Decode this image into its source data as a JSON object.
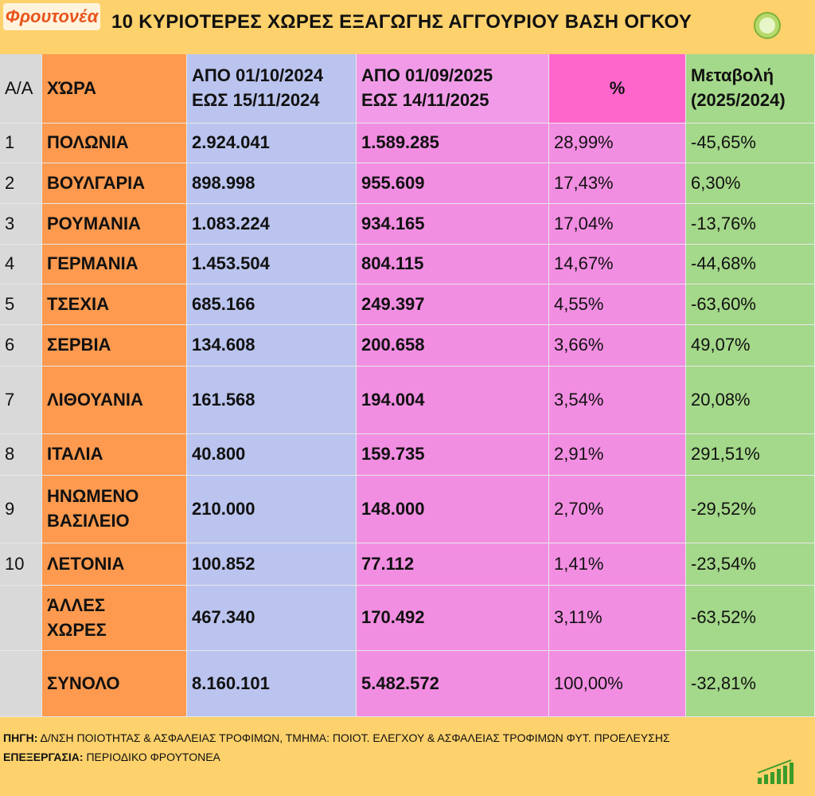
{
  "header": {
    "logo": "Φρουτονέα",
    "title": "10 ΚΥΡΙΟΤΕΡΕΣ ΧΩΡΕΣ ΕΞΑΓΩΓΗΣ ΑΓΓΟΥΡΙΟΥ ΒΑΣΗ ΟΓΚΟΥ"
  },
  "table": {
    "columns": [
      [
        "Α/Α"
      ],
      [
        "ΧΏΡΑ"
      ],
      [
        "ΑΠΟ 01/10/2024",
        "ΕΩΣ  15/11/2024"
      ],
      [
        "ΑΠΟ 01/09/2025",
        "ΕΩΣ  14/11/2025"
      ],
      [
        "%"
      ],
      [
        "Μεταβολή",
        "(2025/2024)"
      ]
    ],
    "rows": [
      {
        "rank": "1",
        "country": [
          "ΠΟΛΩΝΙΑ"
        ],
        "v2024": "2.924.041",
        "v2025": "1.589.285",
        "share": "28,99%",
        "change": "-45,65%"
      },
      {
        "rank": "2",
        "country": [
          "ΒΟΥΛΓΑΡΙΑ"
        ],
        "v2024": "898.998",
        "v2025": "955.609",
        "share": "17,43%",
        "change": "6,30%"
      },
      {
        "rank": "3",
        "country": [
          "ΡΟΥΜΑΝΙΑ"
        ],
        "v2024": "1.083.224",
        "v2025": "934.165",
        "share": "17,04%",
        "change": "-13,76%"
      },
      {
        "rank": "4",
        "country": [
          "ΓΕΡΜΑΝΙΑ"
        ],
        "v2024": "1.453.504",
        "v2025": "804.115",
        "share": "14,67%",
        "change": "-44,68%"
      },
      {
        "rank": "5",
        "country": [
          "ΤΣΕΧΙΑ"
        ],
        "v2024": "685.166",
        "v2025": "249.397",
        "share": "4,55%",
        "change": "-63,60%"
      },
      {
        "rank": "6",
        "country": [
          "ΣΕΡΒΙΑ"
        ],
        "v2024": "134.608",
        "v2025": "200.658",
        "share": "3,66%",
        "change": "49,07%"
      },
      {
        "rank": "7",
        "country": [
          "ΛΙΘΟΥΑΝΙΑ"
        ],
        "v2024": "161.568",
        "v2025": "194.004",
        "share": "3,54%",
        "change": "20,08%"
      },
      {
        "rank": "8",
        "country": [
          "ΙΤΑΛΙΑ"
        ],
        "v2024": "40.800",
        "v2025": "159.735",
        "share": "2,91%",
        "change": "291,51%"
      },
      {
        "rank": "9",
        "country": [
          "ΗΝΩΜΕΝΟ",
          "ΒΑΣΙΛΕΙΟ"
        ],
        "v2024": "210.000",
        "v2025": "148.000",
        "share": "2,70%",
        "change": "-29,52%"
      },
      {
        "rank": "10",
        "country": [
          "ΛΕΤΟΝΙΑ"
        ],
        "v2024": "100.852",
        "v2025": "77.112",
        "share": "1,41%",
        "change": "-23,54%"
      },
      {
        "country": [
          "ΆΛΛΕΣ",
          "ΧΩΡΕΣ"
        ],
        "v2024": "467.340",
        "v2025": "170.492",
        "share": "3,11%",
        "change": "-63,52%"
      },
      {
        "country": [
          "ΣΥΝΟΛΟ"
        ],
        "v2024": "8.160.101",
        "v2025": "5.482.572",
        "share": "100,00%",
        "change": "-32,81%"
      }
    ]
  },
  "footer": {
    "source_label": "ΠΗΓΗ:",
    "source": "Δ/ΝΣΗ ΠΟΙΟΤΗΤΑΣ & ΑΣΦΑΛΕΙΑΣ ΤΡΟΦΙΜΩΝ, ΤΜΗΜΑ: ΠΟΙΟΤ. ΕΛΕΓΧΟΥ & ΑΣΦΑΛΕΙΑΣ ΤΡΟΦΙΜΩΝ ΦΥΤ. ΠΡΟΕΛΕΥΣΗΣ",
    "processing_label": "ΕΠΕΞΕΡΓΑΣΙΑ:",
    "processing": "ΠΕΡΙΟΔΙΚΟ ΦΡΟΥΤΟΝΕΑ"
  }
}
